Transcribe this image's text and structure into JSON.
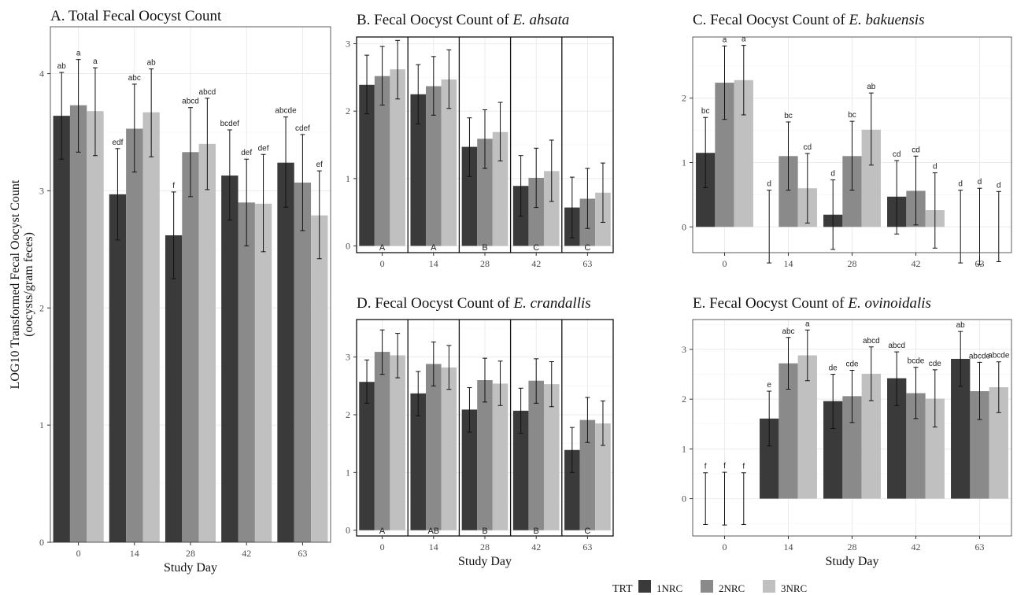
{
  "colors": {
    "1NRC": "#3a3a3a",
    "2NRC": "#8a8a8a",
    "3NRC": "#c0c0c0",
    "frame": "#333333",
    "grid": "#ebebeb"
  },
  "legend": {
    "title": "TRT",
    "position": "bottom",
    "items": [
      "1NRC",
      "2NRC",
      "3NRC"
    ]
  },
  "chart_data": [
    {
      "id": "A",
      "type": "bar",
      "title": "A. Total Fecal Oocyst Count",
      "title_species": "",
      "xlabel": "Study Day",
      "ylabel": [
        "LOG10 Transformed Fecal Oocyst Count",
        "(oocysts/gram feces)"
      ],
      "ylim": [
        0,
        4.4
      ],
      "yticks": [
        0,
        1,
        2,
        3,
        4
      ],
      "categories": [
        "0",
        "14",
        "28",
        "42",
        "63"
      ],
      "grid": true,
      "facet_dividers": false,
      "series": [
        {
          "name": "1NRC",
          "values": [
            3.64,
            2.97,
            2.62,
            3.13,
            3.24
          ],
          "lo": [
            3.27,
            2.58,
            2.25,
            2.75,
            2.86
          ],
          "hi": [
            4.01,
            3.36,
            2.99,
            3.52,
            3.63
          ],
          "labels": [
            "ab",
            "edf",
            "f",
            "bcdef",
            "abcde"
          ]
        },
        {
          "name": "2NRC",
          "values": [
            3.73,
            3.53,
            3.33,
            2.9,
            3.07
          ],
          "lo": [
            3.33,
            3.16,
            2.95,
            2.53,
            2.66
          ],
          "hi": [
            4.12,
            3.91,
            3.71,
            3.27,
            3.48
          ],
          "labels": [
            "a",
            "abc",
            "abcd",
            "def",
            "cdef"
          ]
        },
        {
          "name": "3NRC",
          "values": [
            3.68,
            3.67,
            3.4,
            2.89,
            2.79
          ],
          "lo": [
            3.3,
            3.29,
            3.01,
            2.48,
            2.42
          ],
          "hi": [
            4.05,
            4.04,
            3.79,
            3.31,
            3.17
          ],
          "labels": [
            "a",
            "ab",
            "abcd",
            "def",
            "ef"
          ]
        }
      ],
      "group_labels": []
    },
    {
      "id": "B",
      "type": "bar",
      "title": "B. Fecal Oocyst Count of ",
      "title_species": "E. ahsata",
      "xlabel": "",
      "ylabel": [],
      "ylim": [
        -0.1,
        3.1
      ],
      "yticks": [
        0,
        1,
        2,
        3
      ],
      "categories": [
        "0",
        "14",
        "28",
        "42",
        "63"
      ],
      "grid": true,
      "facet_dividers": true,
      "series": [
        {
          "name": "1NRC",
          "values": [
            2.39,
            2.25,
            1.47,
            0.89,
            0.57
          ],
          "lo": [
            1.96,
            1.81,
            1.03,
            0.44,
            0.12
          ],
          "hi": [
            2.83,
            2.69,
            1.9,
            1.34,
            1.02
          ],
          "labels": []
        },
        {
          "name": "2NRC",
          "values": [
            2.52,
            2.37,
            1.59,
            1.01,
            0.7
          ],
          "lo": [
            2.09,
            1.94,
            1.15,
            0.57,
            0.26
          ],
          "hi": [
            2.96,
            2.81,
            2.02,
            1.45,
            1.15
          ],
          "labels": []
        },
        {
          "name": "3NRC",
          "values": [
            2.62,
            2.47,
            1.69,
            1.11,
            0.79
          ],
          "lo": [
            2.18,
            2.04,
            1.26,
            0.66,
            0.35
          ],
          "hi": [
            3.05,
            2.91,
            2.13,
            1.57,
            1.23
          ],
          "labels": []
        }
      ],
      "group_labels": [
        "A",
        "A",
        "B",
        "C",
        "C"
      ]
    },
    {
      "id": "C",
      "type": "bar",
      "title": "C. Fecal Oocyst Count of ",
      "title_species": "E. bakuensis",
      "xlabel": "",
      "ylabel": [],
      "ylim": [
        -0.4,
        2.95
      ],
      "yticks": [
        0,
        1,
        2
      ],
      "categories": [
        "0",
        "14",
        "28",
        "42",
        "63"
      ],
      "grid": true,
      "facet_dividers": false,
      "series": [
        {
          "name": "1NRC",
          "values": [
            1.15,
            0.0,
            0.19,
            0.47,
            0.0
          ],
          "lo": [
            0.61,
            -0.56,
            -0.35,
            -0.11,
            -0.56
          ],
          "hi": [
            1.7,
            0.57,
            0.73,
            1.03,
            0.57
          ],
          "labels": [
            "bc",
            "d",
            "d",
            "cd",
            "d"
          ]
        },
        {
          "name": "2NRC",
          "values": [
            2.24,
            1.1,
            1.1,
            0.56,
            0.0
          ],
          "lo": [
            1.67,
            0.57,
            0.57,
            0.03,
            -0.59
          ],
          "hi": [
            2.81,
            1.63,
            1.64,
            1.1,
            0.6
          ],
          "labels": [
            "a",
            "bc",
            "bc",
            "cd",
            "d"
          ]
        },
        {
          "name": "3NRC",
          "values": [
            2.28,
            0.6,
            1.51,
            0.26,
            0.0
          ],
          "lo": [
            1.74,
            0.06,
            0.96,
            -0.33,
            -0.54
          ],
          "hi": [
            2.82,
            1.14,
            2.08,
            0.84,
            0.55
          ],
          "labels": [
            "a",
            "cd",
            "ab",
            "d",
            "d"
          ]
        }
      ],
      "group_labels": []
    },
    {
      "id": "D",
      "type": "bar",
      "title": "D. Fecal Oocyst Count of ",
      "title_species": "E. crandallis",
      "xlabel": "Study Day",
      "ylabel": [],
      "ylim": [
        -0.1,
        3.65
      ],
      "yticks": [
        0,
        1,
        2,
        3
      ],
      "categories": [
        "0",
        "14",
        "28",
        "42",
        "63"
      ],
      "grid": true,
      "facet_dividers": true,
      "series": [
        {
          "name": "1NRC",
          "values": [
            2.57,
            2.37,
            2.09,
            2.07,
            1.39
          ],
          "lo": [
            2.2,
            1.98,
            1.7,
            1.68,
            1.0
          ],
          "hi": [
            2.95,
            2.75,
            2.47,
            2.46,
            1.78
          ],
          "labels": []
        },
        {
          "name": "2NRC",
          "values": [
            3.09,
            2.88,
            2.6,
            2.59,
            1.91
          ],
          "lo": [
            2.7,
            2.5,
            2.22,
            2.2,
            1.52
          ],
          "hi": [
            3.47,
            3.26,
            2.98,
            2.97,
            2.3
          ],
          "labels": []
        },
        {
          "name": "3NRC",
          "values": [
            3.03,
            2.82,
            2.54,
            2.53,
            1.85
          ],
          "lo": [
            2.64,
            2.44,
            2.16,
            2.14,
            1.47
          ],
          "hi": [
            3.41,
            3.2,
            2.93,
            2.92,
            2.24
          ],
          "labels": []
        }
      ],
      "group_labels": [
        "A",
        "AB",
        "B",
        "B",
        "C"
      ]
    },
    {
      "id": "E",
      "type": "bar",
      "title": "E. Fecal Oocyst Count of ",
      "title_species": "E. ovinoidalis",
      "xlabel": "Study Day",
      "ylabel": [],
      "ylim": [
        -0.75,
        3.6
      ],
      "yticks": [
        0,
        1,
        2,
        3
      ],
      "categories": [
        "0",
        "14",
        "28",
        "42",
        "63"
      ],
      "grid": true,
      "facet_dividers": false,
      "series": [
        {
          "name": "1NRC",
          "values": [
            0.0,
            1.61,
            1.96,
            2.42,
            2.81
          ],
          "lo": [
            -0.52,
            1.06,
            1.41,
            1.87,
            2.26
          ],
          "hi": [
            0.52,
            2.16,
            2.5,
            2.95,
            3.36
          ],
          "labels": [
            "f",
            "e",
            "de",
            "abcd",
            "ab"
          ]
        },
        {
          "name": "2NRC",
          "values": [
            0.0,
            2.72,
            2.06,
            2.12,
            2.16
          ],
          "lo": [
            -0.53,
            2.2,
            1.53,
            1.61,
            1.59
          ],
          "hi": [
            0.53,
            3.24,
            2.58,
            2.64,
            2.74
          ],
          "labels": [
            "f",
            "abc",
            "cde",
            "bcde",
            "abcde"
          ]
        },
        {
          "name": "3NRC",
          "values": [
            0.0,
            2.88,
            2.51,
            2.01,
            2.24
          ],
          "lo": [
            -0.52,
            2.37,
            1.97,
            1.44,
            1.73
          ],
          "hi": [
            0.52,
            3.39,
            3.05,
            2.59,
            2.75
          ],
          "labels": [
            "f",
            "a",
            "abcd",
            "cde",
            "abcde"
          ]
        }
      ],
      "group_labels": []
    }
  ]
}
